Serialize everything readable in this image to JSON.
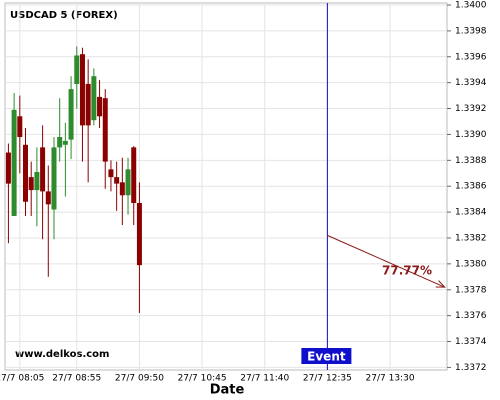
{
  "chart_data": {
    "type": "candlestick",
    "title": "USDCAD 5 (FOREX)",
    "watermark": "www.delkos.com",
    "x_label": "Date",
    "candles": {
      "x": [
        "27/7 07:55",
        "27/7 08:00",
        "27/7 08:05",
        "27/7 08:10",
        "27/7 08:15",
        "27/7 08:20",
        "27/7 08:25",
        "27/7 08:30",
        "27/7 08:35",
        "27/7 08:40",
        "27/7 08:45",
        "27/7 08:50",
        "27/7 08:55",
        "27/7 09:00",
        "27/7 09:05",
        "27/7 09:10",
        "27/7 09:15",
        "27/7 09:20",
        "27/7 09:25",
        "27/7 09:30",
        "27/7 09:35",
        "27/7 09:40",
        "27/7 09:45",
        "27/7 09:50"
      ],
      "open": [
        1.33886,
        1.33837,
        1.33914,
        1.33892,
        1.33867,
        1.33857,
        1.3389,
        1.33856,
        1.33842,
        1.3389,
        1.33892,
        1.33896,
        1.33939,
        1.33962,
        1.33939,
        1.33911,
        1.33929,
        1.33928,
        1.33873,
        1.33867,
        1.33863,
        1.33853,
        1.3389,
        1.33847
      ],
      "high": [
        1.33893,
        1.33932,
        1.3393,
        1.33905,
        1.33879,
        1.3389,
        1.33907,
        1.33876,
        1.33898,
        1.33928,
        1.33909,
        1.33945,
        1.33968,
        1.33967,
        1.33958,
        1.33951,
        1.33942,
        1.33935,
        1.3388,
        1.33879,
        1.33882,
        1.33882,
        1.33891,
        1.33863
      ],
      "low": [
        1.33816,
        1.33837,
        1.3387,
        1.33837,
        1.33837,
        1.33829,
        1.33819,
        1.3379,
        1.33819,
        1.33879,
        1.33852,
        1.33881,
        1.3392,
        1.33879,
        1.33863,
        1.33907,
        1.33905,
        1.33858,
        1.33856,
        1.33841,
        1.3383,
        1.33838,
        1.3383,
        1.33762
      ],
      "close": [
        1.33862,
        1.33919,
        1.33898,
        1.33848,
        1.33857,
        1.33871,
        1.33856,
        1.33846,
        1.3389,
        1.33898,
        1.33895,
        1.33935,
        1.33961,
        1.33907,
        1.33907,
        1.33945,
        1.33914,
        1.33879,
        1.33867,
        1.33862,
        1.33853,
        1.33873,
        1.33847,
        1.33799
      ]
    },
    "up_color": "#2e8b2e",
    "down_color": "#8b0000",
    "event": {
      "label": "Event",
      "x": "27/7 12:35",
      "color": "#1010cc"
    },
    "forecast": {
      "label": "77.77%",
      "x": [
        "27/7 12:35",
        "27/7 14:18"
      ],
      "y": [
        1.33822,
        1.33782
      ],
      "color": "#8b1a1a"
    },
    "xlim": [
      "27/7 07:52",
      "27/7 14:20"
    ],
    "xticks": [
      "27/7 08:05",
      "27/7 08:55",
      "27/7 09:50",
      "27/7 10:45",
      "27/7 11:40",
      "27/7 12:35",
      "27/7 13:30"
    ],
    "ylim": [
      1.33718,
      1.34
    ],
    "yticks": [
      1.3372,
      1.3374,
      1.3376,
      1.3378,
      {
        "value": 1.338,
        "label": "1.3380"
      },
      1.3382,
      1.3384,
      1.3386,
      1.3388,
      {
        "value": 1.339,
        "label": "1.3390"
      },
      1.3392,
      1.3394,
      1.3396,
      1.3398,
      {
        "value": 1.34,
        "label": "1.3400"
      }
    ],
    "grid": true
  }
}
